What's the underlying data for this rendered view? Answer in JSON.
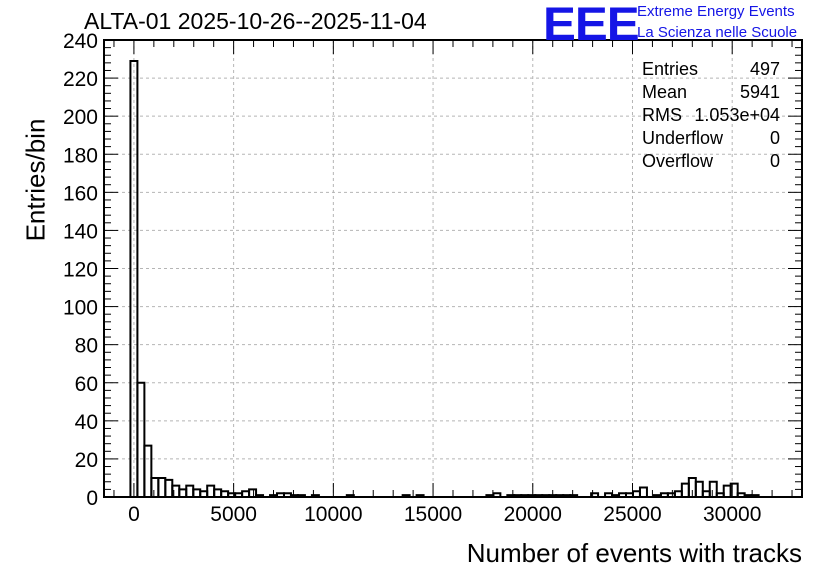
{
  "chart_data": {
    "type": "bar",
    "title": "ALTA-01 2025-10-26--2025-11-04",
    "xlabel": "Number of events with tracks",
    "ylabel": "Entries/bin",
    "xlim": [
      -1500,
      33500
    ],
    "ylim": [
      0,
      240
    ],
    "bin_width": 350,
    "x_ticks": [
      "0",
      "5000",
      "10000",
      "15000",
      "20000",
      "25000",
      "30000"
    ],
    "y_ticks": [
      "0",
      "20",
      "40",
      "60",
      "80",
      "100",
      "120",
      "140",
      "160",
      "180",
      "200",
      "220",
      "240"
    ],
    "grid": true,
    "bins": [
      {
        "x": 0,
        "y": 229
      },
      {
        "x": 350,
        "y": 60
      },
      {
        "x": 700,
        "y": 27
      },
      {
        "x": 1050,
        "y": 10
      },
      {
        "x": 1400,
        "y": 10
      },
      {
        "x": 1750,
        "y": 9
      },
      {
        "x": 2100,
        "y": 6
      },
      {
        "x": 2450,
        "y": 4
      },
      {
        "x": 2800,
        "y": 6
      },
      {
        "x": 3150,
        "y": 4
      },
      {
        "x": 3500,
        "y": 3
      },
      {
        "x": 3850,
        "y": 6
      },
      {
        "x": 4200,
        "y": 4
      },
      {
        "x": 4550,
        "y": 3
      },
      {
        "x": 4900,
        "y": 2
      },
      {
        "x": 5250,
        "y": 2
      },
      {
        "x": 5600,
        "y": 3
      },
      {
        "x": 5950,
        "y": 4
      },
      {
        "x": 6300,
        "y": 1
      },
      {
        "x": 7000,
        "y": 1
      },
      {
        "x": 7350,
        "y": 2
      },
      {
        "x": 7700,
        "y": 2
      },
      {
        "x": 8050,
        "y": 1
      },
      {
        "x": 8400,
        "y": 1
      },
      {
        "x": 9100,
        "y": 1
      },
      {
        "x": 10850,
        "y": 1
      },
      {
        "x": 13650,
        "y": 1
      },
      {
        "x": 14350,
        "y": 1
      },
      {
        "x": 17850,
        "y": 1
      },
      {
        "x": 18200,
        "y": 2
      },
      {
        "x": 18900,
        "y": 1
      },
      {
        "x": 19250,
        "y": 1
      },
      {
        "x": 19600,
        "y": 1
      },
      {
        "x": 19950,
        "y": 1
      },
      {
        "x": 20300,
        "y": 1
      },
      {
        "x": 20650,
        "y": 1
      },
      {
        "x": 21000,
        "y": 1
      },
      {
        "x": 21350,
        "y": 1
      },
      {
        "x": 21700,
        "y": 1
      },
      {
        "x": 22050,
        "y": 1
      },
      {
        "x": 23100,
        "y": 2
      },
      {
        "x": 23800,
        "y": 2
      },
      {
        "x": 24150,
        "y": 1
      },
      {
        "x": 24500,
        "y": 2
      },
      {
        "x": 24850,
        "y": 2
      },
      {
        "x": 25200,
        "y": 3
      },
      {
        "x": 25550,
        "y": 5
      },
      {
        "x": 26250,
        "y": 1
      },
      {
        "x": 26600,
        "y": 2
      },
      {
        "x": 26950,
        "y": 2
      },
      {
        "x": 27300,
        "y": 3
      },
      {
        "x": 27650,
        "y": 7
      },
      {
        "x": 28000,
        "y": 10
      },
      {
        "x": 28350,
        "y": 8
      },
      {
        "x": 28700,
        "y": 3
      },
      {
        "x": 29050,
        "y": 8
      },
      {
        "x": 29400,
        "y": 2
      },
      {
        "x": 29750,
        "y": 6
      },
      {
        "x": 30100,
        "y": 7
      },
      {
        "x": 30450,
        "y": 2
      },
      {
        "x": 30800,
        "y": 1
      },
      {
        "x": 31150,
        "y": 1
      }
    ]
  },
  "stats": {
    "entries_label": "Entries",
    "entries_value": "497",
    "mean_label": "Mean",
    "mean_value": "5941",
    "rms_label": "RMS",
    "rms_value": "1.053e+04",
    "underflow_label": "Underflow",
    "underflow_value": "0",
    "overflow_label": "Overflow",
    "overflow_value": "0"
  },
  "logo": {
    "mark": "EEE",
    "line1": "Extreme Energy Events",
    "line2": "La Scienza nelle Scuole",
    "color": "#1515e6"
  }
}
